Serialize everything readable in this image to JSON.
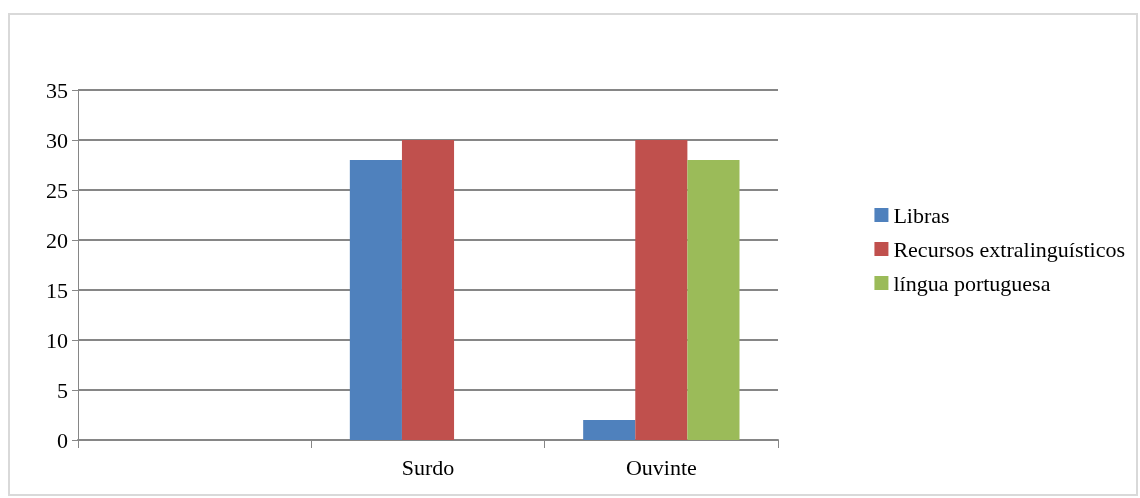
{
  "chart_data": {
    "type": "bar",
    "categories": [
      null,
      "Surdo",
      "Ouvinte"
    ],
    "series": [
      {
        "name": "Libras",
        "color": "#4f81bd",
        "values": [
          null,
          28,
          2
        ]
      },
      {
        "name": "Recursos extralinguísticos",
        "color": "#c0504d",
        "values": [
          null,
          30,
          30
        ]
      },
      {
        "name": "língua portuguesa",
        "color": "#9bbb59",
        "values": [
          null,
          null,
          28
        ]
      }
    ],
    "ylim": [
      0,
      35
    ],
    "yticks": [
      0,
      5,
      10,
      15,
      20,
      25,
      30,
      35
    ],
    "grid": "y",
    "legend": "right"
  }
}
